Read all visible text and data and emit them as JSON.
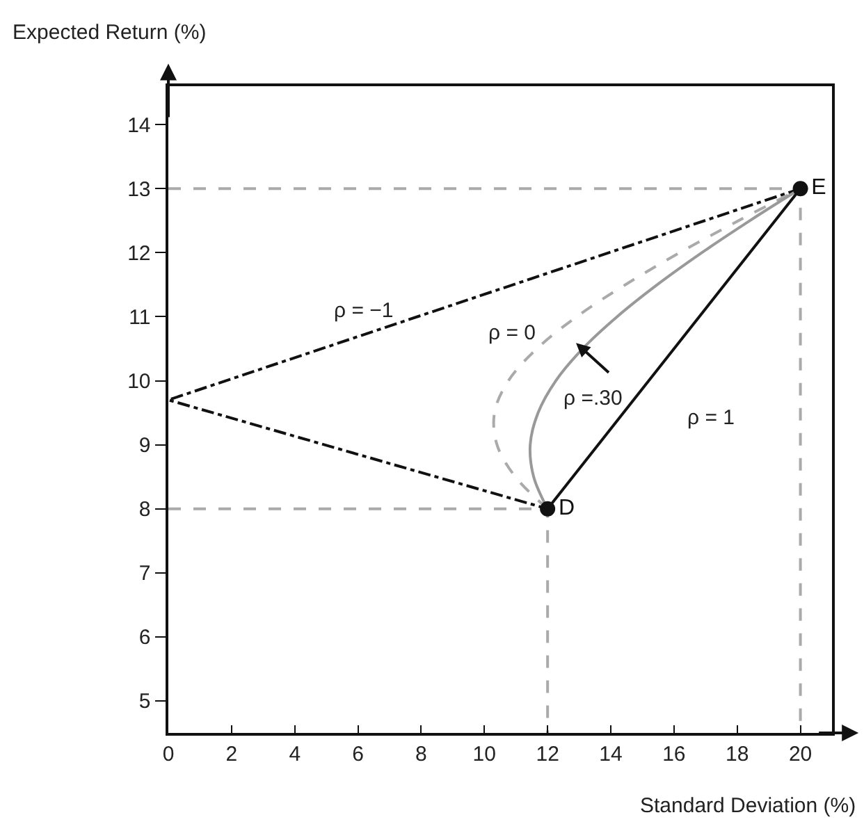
{
  "chart_data": {
    "type": "line",
    "xlabel": "Standard Deviation (%)",
    "ylabel": "Expected Return (%)",
    "xlim": [
      0,
      21
    ],
    "ylim": [
      4.5,
      14.6
    ],
    "xticks": [
      0,
      2,
      4,
      6,
      8,
      10,
      12,
      14,
      16,
      18,
      20
    ],
    "yticks": [
      5,
      6,
      7,
      8,
      9,
      10,
      11,
      12,
      13,
      14
    ],
    "series": [
      {
        "color": "#aaaaaa",
        "line_style": "dashed",
        "x": [
          0,
          12,
          12
        ],
        "values": [
          8,
          8,
          4.5
        ]
      },
      {
        "color": "#aaaaaa",
        "line_style": "dashed",
        "x": [
          0,
          20,
          20
        ],
        "values": [
          13,
          13,
          4.5
        ]
      },
      {
        "color": "#111111",
        "line_style": "dashdot",
        "x": [
          20,
          0,
          12
        ],
        "values": [
          13,
          9.7,
          8
        ]
      },
      {
        "color": "#aaaaaa",
        "line_style": "dashed",
        "x": [
          12,
          10.98,
          10.4,
          10.32,
          10.76,
          11.66,
          12.92,
          14.46,
          16.18,
          18.04,
          20
        ],
        "values": [
          8,
          8.5,
          9,
          9.5,
          10,
          10.5,
          11,
          11.5,
          12,
          12.5,
          13
        ]
      },
      {
        "color": "#999999",
        "line_style": "solid",
        "x": [
          12,
          11.56,
          11.45,
          11.7,
          12.26,
          13.11,
          14.2,
          15.47,
          16.88,
          18.4,
          20
        ],
        "values": [
          8,
          8.5,
          9,
          9.5,
          10,
          10.5,
          11,
          11.5,
          12,
          12.5,
          13
        ]
      },
      {
        "color": "#111111",
        "line_style": "solid",
        "x": [
          12,
          20
        ],
        "values": [
          8,
          13
        ]
      },
      {
        "type": "scatter",
        "color": "#111111",
        "marker": "circle",
        "x": [
          12,
          20
        ],
        "values": [
          8,
          13
        ],
        "value_labels": [
          "D",
          "E"
        ]
      }
    ],
    "annotations": [
      "ρ = −1",
      "ρ = 0",
      "ρ =.30",
      "ρ = 1"
    ]
  }
}
